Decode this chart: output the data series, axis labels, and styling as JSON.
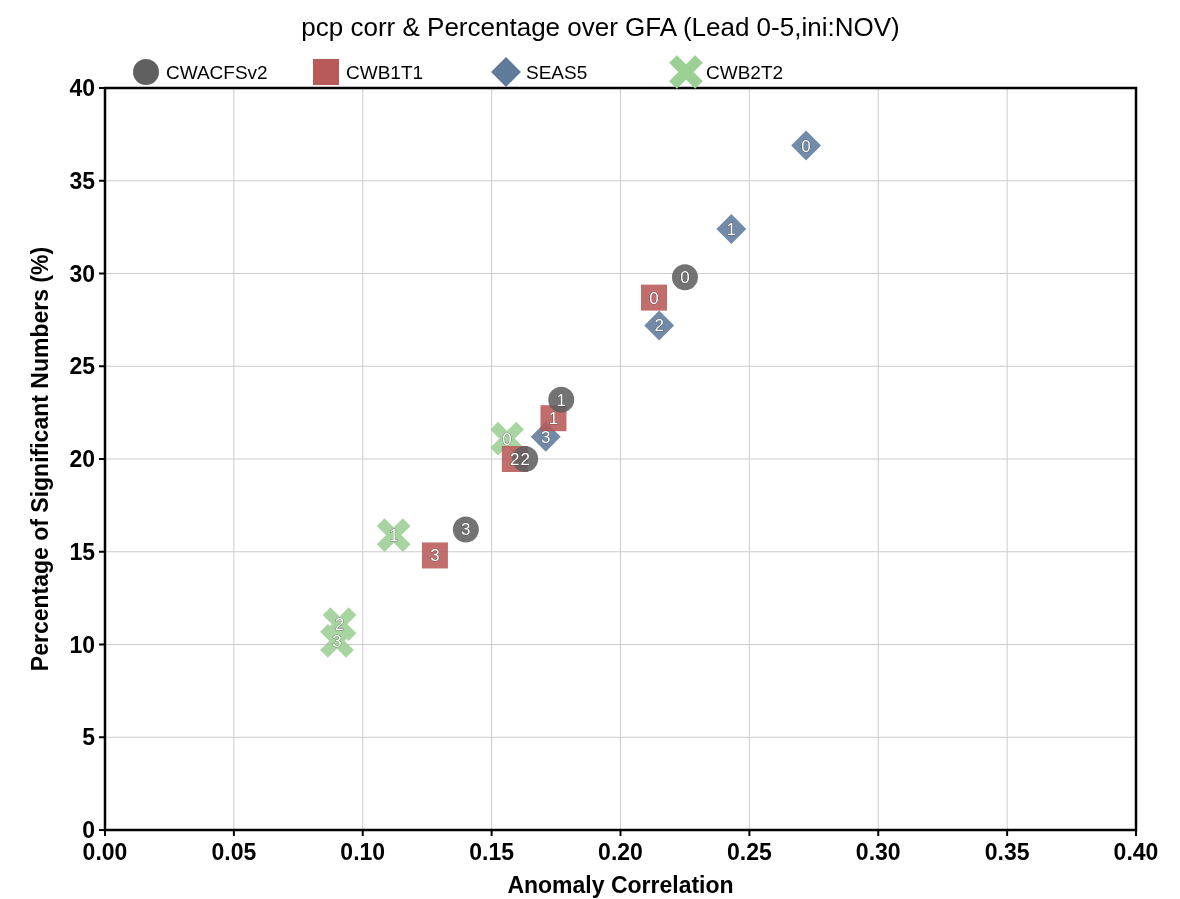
{
  "chart_data": {
    "type": "scatter",
    "title": "pcp corr & Percentage over GFA (Lead 0-5,ini:NOV)",
    "xlabel": "Anomaly Correlation",
    "ylabel": "Percentage of Significant Numbers (%)",
    "xlim": [
      0,
      0.4
    ],
    "ylim": [
      0,
      40
    ],
    "xticks": [
      {
        "value": 0,
        "label": "0.00"
      },
      {
        "value": 0.05,
        "label": "0.05"
      },
      {
        "value": 0.1,
        "label": "0.10"
      },
      {
        "value": 0.15,
        "label": "0.15"
      },
      {
        "value": 0.2,
        "label": "0.20"
      },
      {
        "value": 0.25,
        "label": "0.25"
      },
      {
        "value": 0.3,
        "label": "0.30"
      },
      {
        "value": 0.35,
        "label": "0.35"
      },
      {
        "value": 0.4,
        "label": "0.40"
      }
    ],
    "yticks": [
      0,
      5,
      10,
      15,
      20,
      25,
      30,
      35,
      40
    ],
    "grid": true,
    "legend": "top",
    "series": [
      {
        "name": "CWACFSv2",
        "color": "#606060",
        "marker": "circle",
        "x": [
          0.225,
          0.177,
          0.163,
          0.14
        ],
        "values": [
          29.8,
          23.2,
          20.0,
          16.2
        ]
      },
      {
        "name": "CWB1T1",
        "color": "#b85a58",
        "marker": "square",
        "x": [
          0.213,
          0.174,
          0.159,
          0.128
        ],
        "values": [
          28.7,
          22.2,
          20.0,
          14.8
        ]
      },
      {
        "name": "SEAS5",
        "color": "#5f7b9c",
        "marker": "diamond",
        "x": [
          0.272,
          0.243,
          0.215,
          0.171
        ],
        "values": [
          36.9,
          32.4,
          27.2,
          21.2
        ]
      },
      {
        "name": "CWB2T2",
        "color": "#9ccf94",
        "marker": "cross",
        "x": [
          0.156,
          0.112,
          0.091,
          0.09
        ],
        "values": [
          21.1,
          15.9,
          11.1,
          10.2
        ]
      }
    ],
    "annotations": [
      {
        "text": "0",
        "x": 0.225,
        "y": 29.8
      },
      {
        "text": "1",
        "x": 0.177,
        "y": 23.2
      },
      {
        "text": "2",
        "x": 0.163,
        "y": 20.0
      },
      {
        "text": "3",
        "x": 0.14,
        "y": 16.2
      },
      {
        "text": "0",
        "x": 0.213,
        "y": 28.7
      },
      {
        "text": "1",
        "x": 0.174,
        "y": 22.2
      },
      {
        "text": "2",
        "x": 0.159,
        "y": 20.0
      },
      {
        "text": "3",
        "x": 0.128,
        "y": 14.8
      },
      {
        "text": "0",
        "x": 0.272,
        "y": 36.9
      },
      {
        "text": "1",
        "x": 0.243,
        "y": 32.4
      },
      {
        "text": "2",
        "x": 0.215,
        "y": 27.2
      },
      {
        "text": "3",
        "x": 0.171,
        "y": 21.2
      },
      {
        "text": "0",
        "x": 0.156,
        "y": 21.1
      },
      {
        "text": "1",
        "x": 0.112,
        "y": 15.9
      },
      {
        "text": "2",
        "x": 0.091,
        "y": 11.1
      },
      {
        "text": "3",
        "x": 0.09,
        "y": 10.2
      }
    ]
  }
}
